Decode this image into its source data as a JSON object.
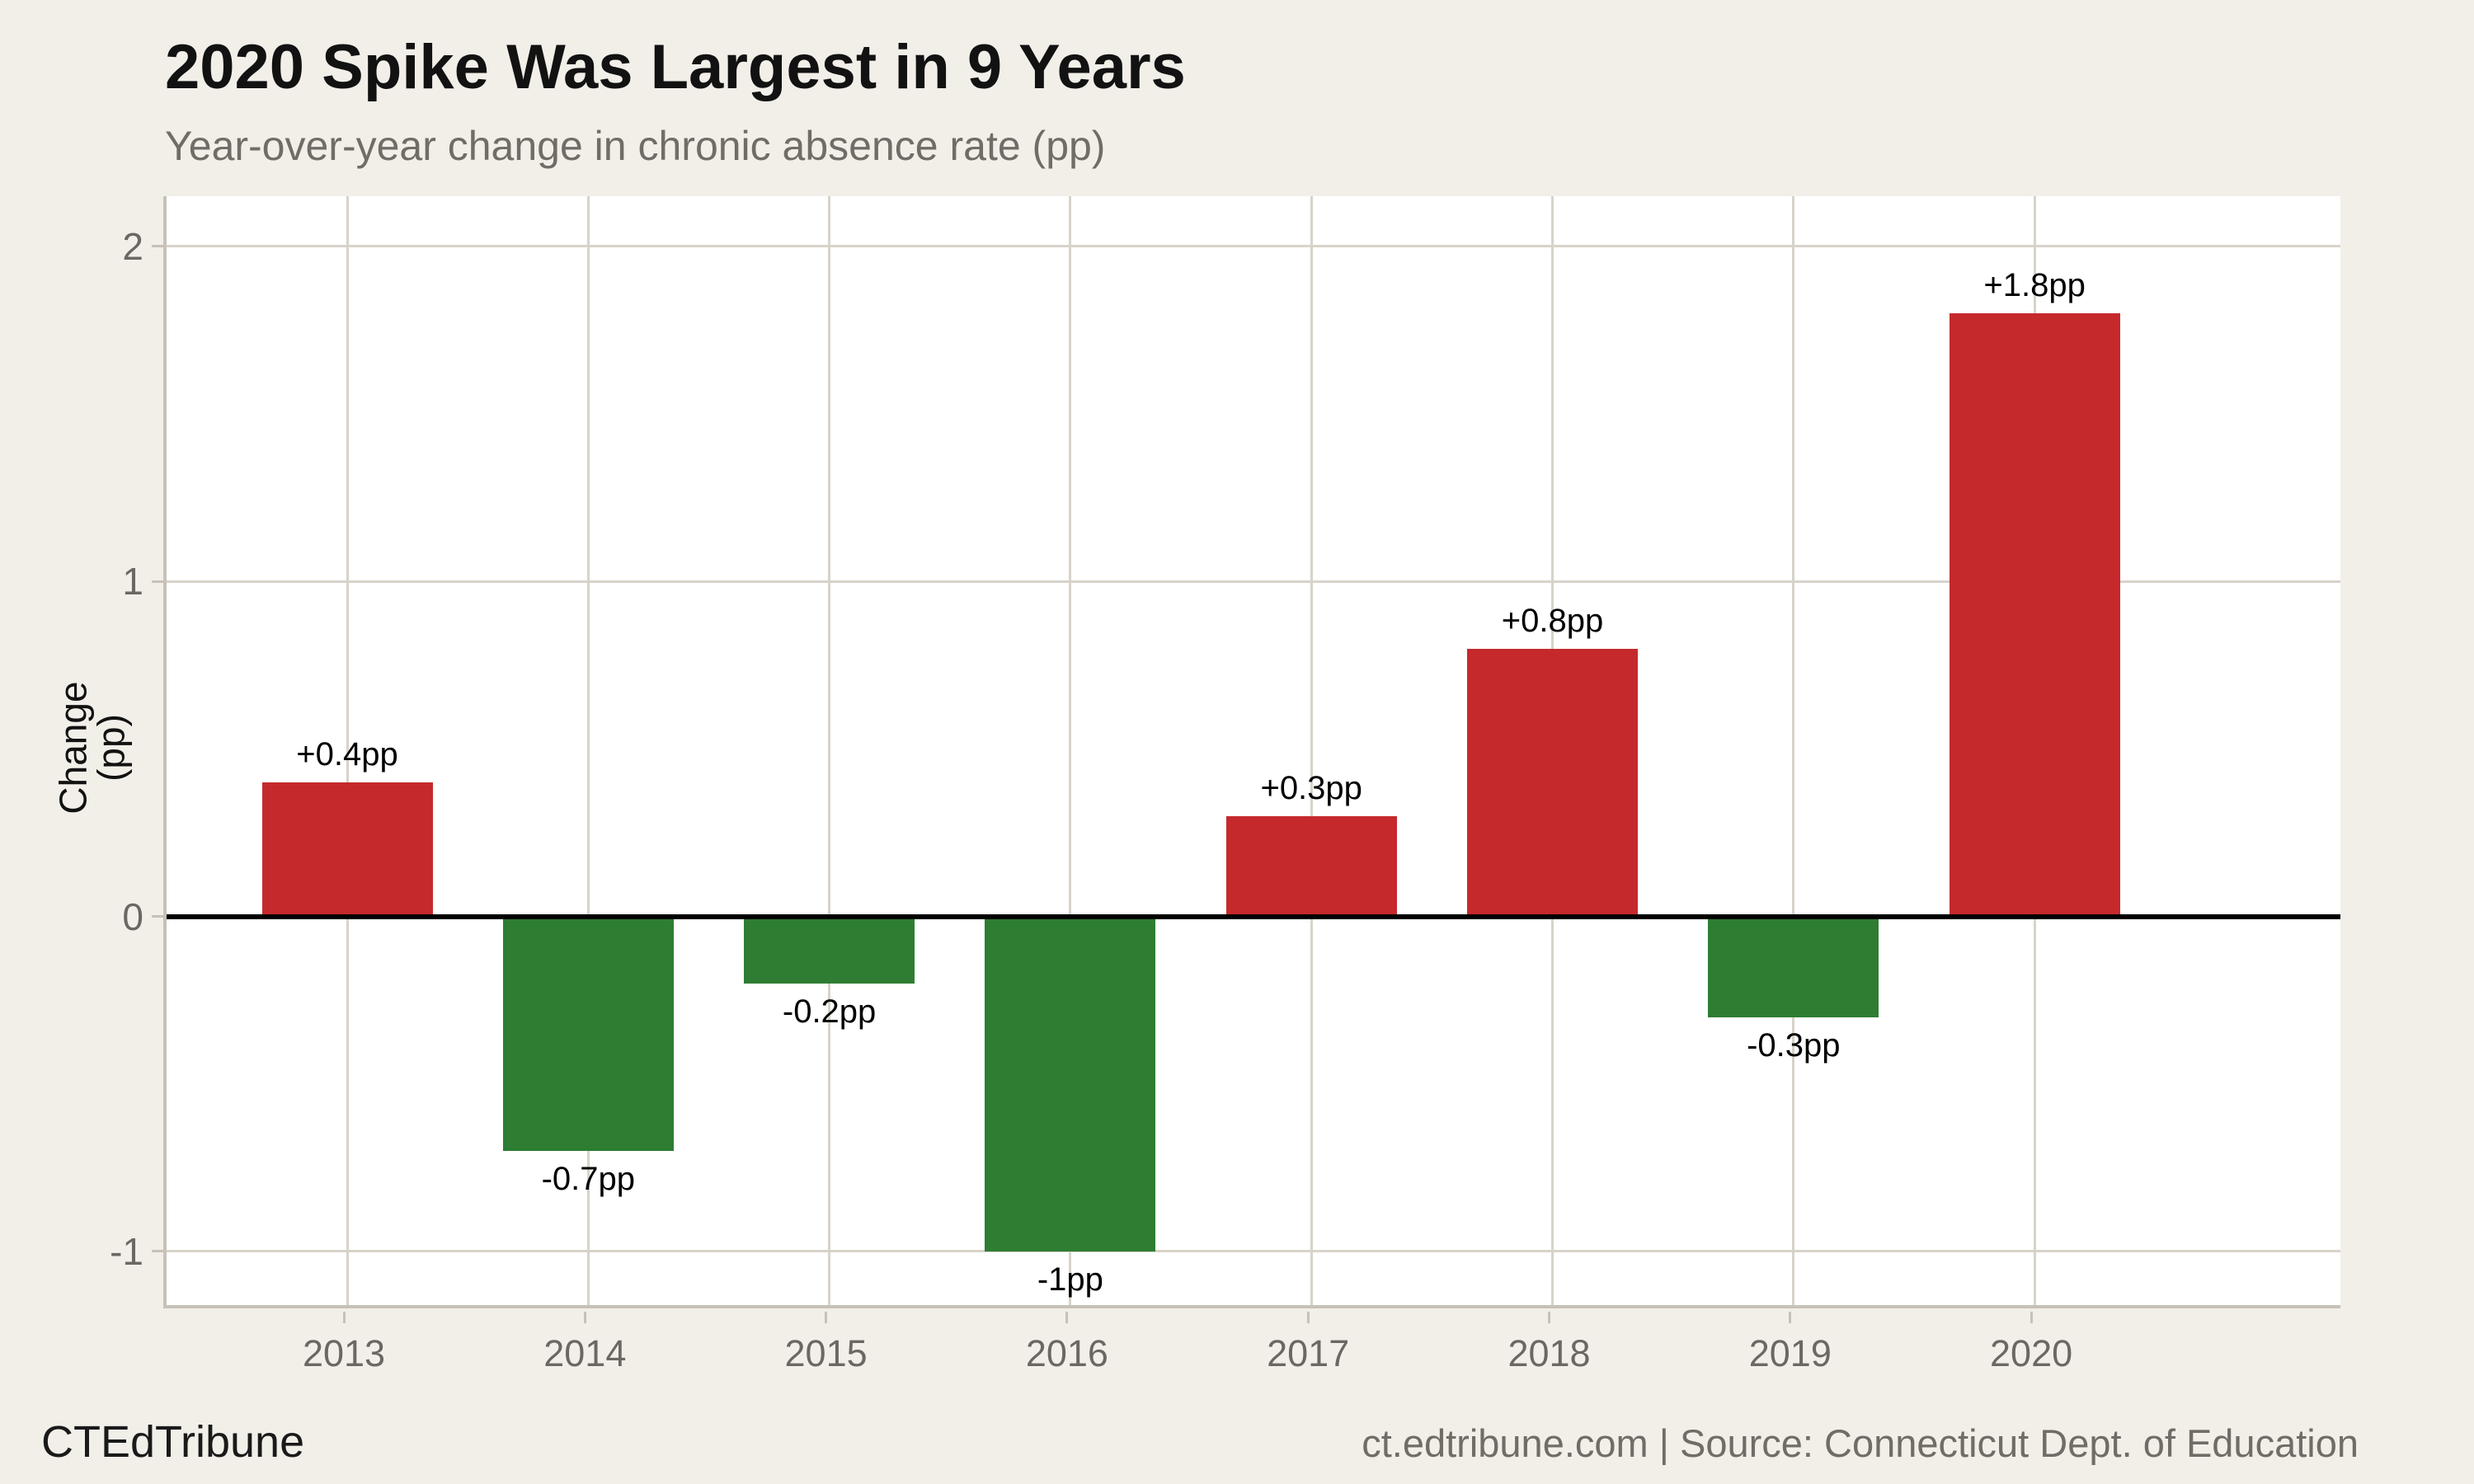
{
  "header": {
    "title": "2020 Spike Was Largest in 9 Years",
    "subtitle": "Year-over-year change in chronic absence rate (pp)"
  },
  "footer": {
    "brand": "CTEdTribune",
    "source": "ct.edtribune.com | Source: Connecticut Dept. of Education"
  },
  "colors": {
    "background": "#f2efe9",
    "plot_background": "#ffffff",
    "positive_bar": "#c5292c",
    "negative_bar": "#2e7d32",
    "gridline": "#d8d3c9",
    "spine": "#c7c1b7",
    "zero_line": "#000000",
    "tick_text": "#6b6762",
    "muted_text": "#706c66",
    "title_text": "#121212"
  },
  "chart_data": {
    "type": "bar",
    "title": "2020 Spike Was Largest in 9 Years",
    "subtitle": "Year-over-year change in chronic absence rate (pp)",
    "categories": [
      "2013",
      "2014",
      "2015",
      "2016",
      "2017",
      "2018",
      "2019",
      "2020"
    ],
    "values": [
      0.4,
      -0.7,
      -0.2,
      -1.0,
      0.3,
      0.8,
      -0.3,
      1.8
    ],
    "value_labels": [
      "+0.4pp",
      "-0.7pp",
      "-0.2pp",
      "-1pp",
      "+0.3pp",
      "+0.8pp",
      "-0.3pp",
      "+1.8pp"
    ],
    "xlabel": "",
    "ylabel": "Change (pp)",
    "ylim": [
      -1.16,
      2.15
    ],
    "y_ticks": [
      2,
      1,
      0,
      -1
    ],
    "grid": true,
    "legend_position": "none",
    "zero_baseline": true
  }
}
